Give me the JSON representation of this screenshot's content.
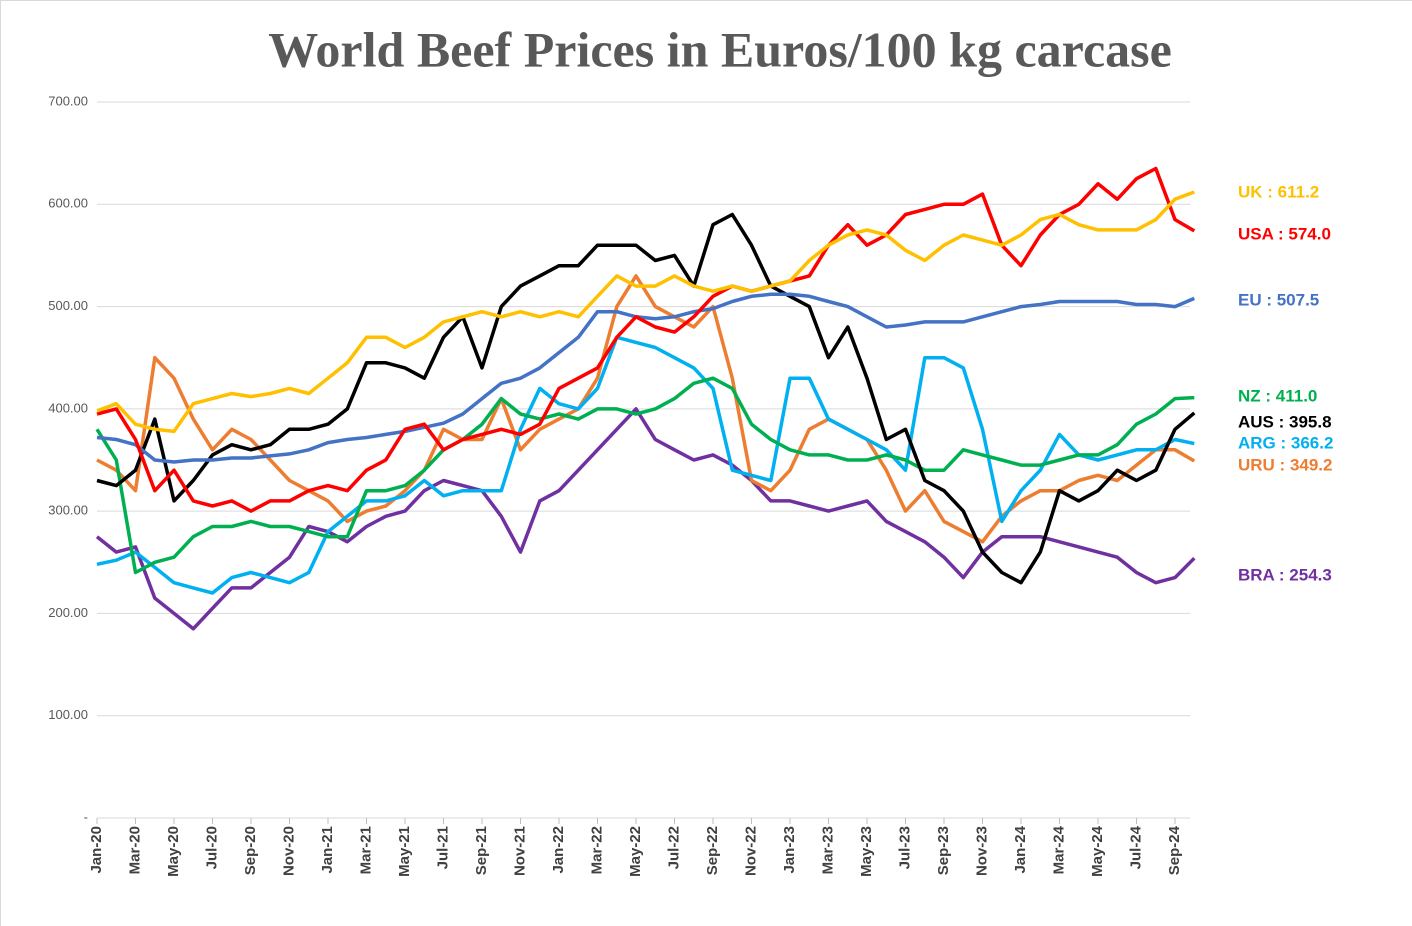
{
  "chart_data": {
    "type": "line",
    "title": "World Beef Prices in Euros/100 kg carcase",
    "categories": [
      "Jan-20",
      null,
      "Mar-20",
      null,
      "May-20",
      null,
      "Jul-20",
      null,
      "Sep-20",
      null,
      "Nov-20",
      null,
      "Jan-21",
      null,
      "Mar-21",
      null,
      "May-21",
      null,
      "Jul-21",
      null,
      "Sep-21",
      null,
      "Nov-21",
      null,
      "Jan-22",
      null,
      "Mar-22",
      null,
      "May-22",
      null,
      "Jul-22",
      null,
      "Sep-22",
      null,
      "Nov-22",
      null,
      "Jan-23",
      null,
      "Mar-23",
      null,
      "May-23",
      null,
      "Jul-23",
      null,
      "Sep-23",
      null,
      "Nov-23",
      null,
      "Jan-24",
      null,
      "Mar-24",
      null,
      "May-24",
      null,
      "Jul-24",
      null,
      "Sep-24",
      null
    ],
    "ylim": [
      0,
      700
    ],
    "yticks": [
      {
        "value": 0,
        "label": "-"
      },
      {
        "value": 100,
        "label": "100.00"
      },
      {
        "value": 200,
        "label": "200.00"
      },
      {
        "value": 300,
        "label": "300.00"
      },
      {
        "value": 400,
        "label": "400.00"
      },
      {
        "value": 500,
        "label": "500.00"
      },
      {
        "value": 600,
        "label": "600.00"
      },
      {
        "value": 700,
        "label": "700.00"
      }
    ],
    "grid": true,
    "series": [
      {
        "name": "BRA",
        "label": "BRA : 254.3",
        "color": "#7030a0",
        "values": [
          275,
          260,
          265,
          215,
          200,
          185,
          205,
          225,
          225,
          240,
          255,
          285,
          280,
          270,
          285,
          295,
          300,
          320,
          330,
          325,
          320,
          295,
          260,
          310,
          320,
          340,
          360,
          380,
          400,
          370,
          360,
          350,
          355,
          345,
          330,
          310,
          310,
          305,
          300,
          305,
          310,
          290,
          280,
          270,
          255,
          235,
          260,
          275,
          275,
          275,
          270,
          265,
          260,
          255,
          240,
          230,
          235,
          254
        ]
      },
      {
        "name": "URU",
        "label": "URU : 349.2",
        "color": "#ed7d31",
        "values": [
          350,
          340,
          320,
          450,
          430,
          390,
          360,
          380,
          370,
          350,
          330,
          320,
          310,
          290,
          300,
          305,
          320,
          340,
          380,
          370,
          370,
          410,
          360,
          380,
          390,
          400,
          430,
          500,
          530,
          500,
          490,
          480,
          500,
          430,
          330,
          320,
          340,
          380,
          390,
          380,
          370,
          340,
          300,
          320,
          290,
          280,
          270,
          295,
          310,
          320,
          320,
          330,
          335,
          330,
          345,
          360,
          360,
          349
        ]
      },
      {
        "name": "ARG",
        "label": "ARG : 366.2",
        "color": "#00b0f0",
        "values": [
          248,
          252,
          260,
          245,
          230,
          225,
          220,
          235,
          240,
          235,
          230,
          240,
          280,
          295,
          310,
          310,
          315,
          330,
          315,
          320,
          320,
          320,
          380,
          420,
          405,
          400,
          420,
          470,
          465,
          460,
          450,
          440,
          420,
          340,
          335,
          330,
          430,
          430,
          390,
          380,
          370,
          360,
          340,
          450,
          450,
          440,
          380,
          290,
          320,
          340,
          375,
          355,
          350,
          355,
          360,
          360,
          370,
          366
        ]
      },
      {
        "name": "NZ",
        "label": "NZ  :  411.0",
        "color": "#00b050",
        "values": [
          380,
          350,
          240,
          250,
          255,
          275,
          285,
          285,
          290,
          285,
          285,
          280,
          275,
          275,
          320,
          320,
          325,
          340,
          360,
          370,
          385,
          410,
          395,
          390,
          395,
          390,
          400,
          400,
          395,
          400,
          410,
          425,
          430,
          420,
          385,
          370,
          360,
          355,
          355,
          350,
          350,
          355,
          350,
          340,
          340,
          360,
          355,
          350,
          345,
          345,
          350,
          355,
          355,
          365,
          385,
          395,
          410,
          411
        ]
      },
      {
        "name": "AUS",
        "label": "AUS : 395.8",
        "color": "#000000",
        "values": [
          330,
          325,
          340,
          390,
          310,
          330,
          355,
          365,
          360,
          365,
          380,
          380,
          385,
          400,
          445,
          445,
          440,
          430,
          470,
          490,
          440,
          500,
          520,
          530,
          540,
          540,
          560,
          560,
          560,
          545,
          550,
          520,
          580,
          590,
          560,
          520,
          510,
          500,
          450,
          480,
          430,
          370,
          380,
          330,
          320,
          300,
          260,
          240,
          230,
          260,
          320,
          310,
          320,
          340,
          330,
          340,
          380,
          396
        ]
      },
      {
        "name": "EU",
        "label": "EU  :  507.5",
        "color": "#4472c4",
        "values": [
          372,
          370,
          365,
          350,
          348,
          350,
          350,
          352,
          352,
          354,
          356,
          360,
          367,
          370,
          372,
          375,
          378,
          382,
          386,
          395,
          410,
          425,
          430,
          440,
          455,
          470,
          495,
          495,
          490,
          488,
          490,
          495,
          498,
          505,
          510,
          512,
          512,
          510,
          505,
          500,
          490,
          480,
          482,
          485,
          485,
          485,
          490,
          495,
          500,
          502,
          505,
          505,
          505,
          505,
          502,
          502,
          500,
          508
        ]
      },
      {
        "name": "USA",
        "label": "USA : 574.0",
        "color": "#ff0000",
        "values": [
          395,
          400,
          370,
          320,
          340,
          310,
          305,
          310,
          300,
          310,
          310,
          320,
          325,
          320,
          340,
          350,
          380,
          385,
          360,
          370,
          375,
          380,
          375,
          385,
          420,
          430,
          440,
          470,
          490,
          480,
          475,
          490,
          510,
          520,
          515,
          520,
          525,
          530,
          560,
          580,
          560,
          570,
          590,
          595,
          600,
          600,
          610,
          560,
          540,
          570,
          590,
          600,
          620,
          605,
          625,
          635,
          585,
          574
        ]
      },
      {
        "name": "UK",
        "label": "UK  :  611.2",
        "color": "#ffc000",
        "values": [
          398,
          405,
          385,
          380,
          378,
          405,
          410,
          415,
          412,
          415,
          420,
          415,
          430,
          445,
          470,
          470,
          460,
          470,
          485,
          490,
          495,
          490,
          495,
          490,
          495,
          490,
          510,
          530,
          520,
          520,
          530,
          520,
          515,
          520,
          515,
          520,
          525,
          545,
          560,
          570,
          575,
          570,
          555,
          545,
          560,
          570,
          565,
          560,
          570,
          585,
          590,
          580,
          575,
          575,
          575,
          585,
          605,
          612
        ]
      }
    ]
  }
}
